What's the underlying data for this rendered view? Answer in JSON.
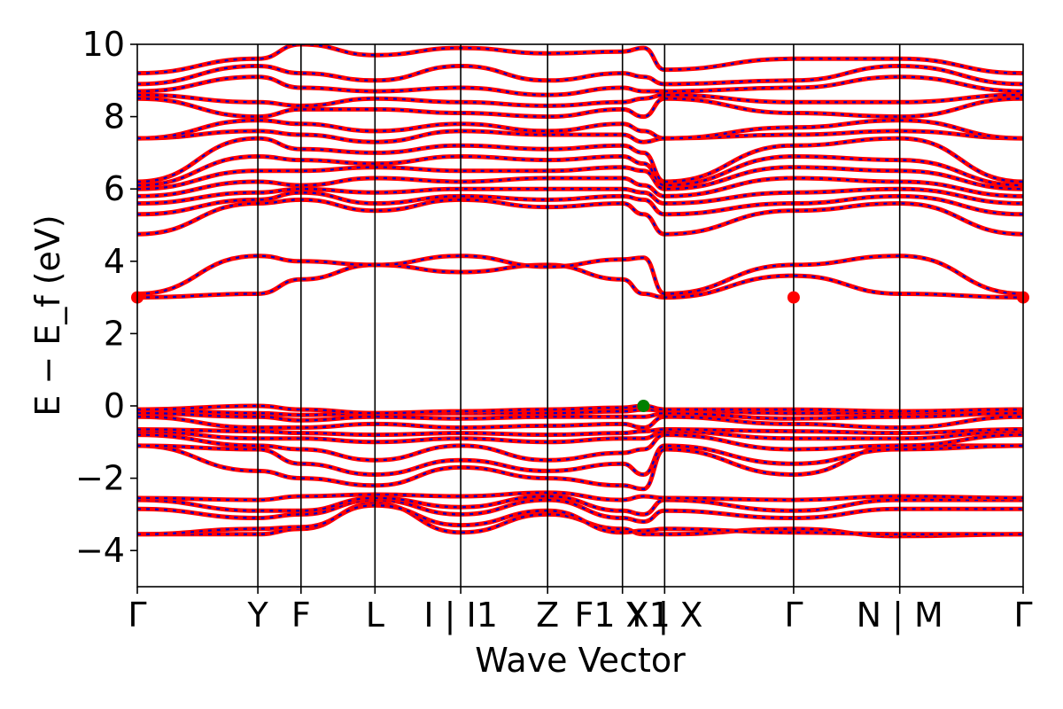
{
  "chart_data": {
    "type": "line",
    "title": "",
    "xlabel": "Wave Vector",
    "ylabel": "E − E_f (eV)",
    "ylim": [
      -5,
      10
    ],
    "yticks": [
      -4,
      -2,
      0,
      2,
      4,
      6,
      8,
      10
    ],
    "ytick_labels": [
      "−4",
      "−2",
      "0",
      "2",
      "4",
      "6",
      "8",
      "10"
    ],
    "grid": false,
    "legend": "none",
    "series_colors": {
      "spin_up": "#ff0000",
      "spin_down": "#0000cc"
    },
    "marker_colors": {
      "cbm": "#ff0000",
      "vbm": "#008000"
    },
    "kpath": [
      {
        "label": "Γ",
        "x": 0.0
      },
      {
        "label": "Y",
        "x": 0.1361
      },
      {
        "label": "F",
        "x": 0.1848
      },
      {
        "label": "L",
        "x": 0.2683
      },
      {
        "label": "I | I1",
        "x": 0.3651
      },
      {
        "label": "Z",
        "x": 0.4632
      },
      {
        "label": "F1 X1",
        "x": 0.5477
      },
      {
        "label": "Y | X",
        "x": 0.5953
      },
      {
        "label": "Γ",
        "x": 0.7409
      },
      {
        "label": "N | M",
        "x": 0.8607
      },
      {
        "label": "Γ",
        "x": 1.0
      }
    ],
    "cbm_points": [
      {
        "x": 0.0,
        "y": 3.0
      },
      {
        "x": 0.7409,
        "y": 3.0
      },
      {
        "x": 1.0,
        "y": 3.0
      }
    ],
    "vbm_point": {
      "x": 0.5714,
      "y": 0.0
    },
    "bands": [
      {
        "name": "v1",
        "y": [
          -3.55,
          -3.55,
          -3.4,
          -2.7,
          -3.5,
          -3.0,
          -3.4,
          -3.55,
          -3.55,
          -3.4,
          -3.6,
          -3.55
        ]
      },
      {
        "name": "v2",
        "y": [
          -3.55,
          -3.4,
          -3.35,
          -2.75,
          -3.3,
          -2.9,
          -3.5,
          -3.45,
          -3.4,
          -3.5,
          -3.55,
          -3.55
        ]
      },
      {
        "name": "v3",
        "y": [
          -2.85,
          -3.1,
          -3.0,
          -2.6,
          -3.0,
          -2.6,
          -3.1,
          -3.2,
          -2.9,
          -3.1,
          -2.85,
          -2.85
        ]
      },
      {
        "name": "v4",
        "y": [
          -2.6,
          -2.9,
          -2.9,
          -2.55,
          -2.8,
          -2.5,
          -2.9,
          -3.0,
          -2.6,
          -2.9,
          -2.6,
          -2.6
        ]
      },
      {
        "name": "v5",
        "y": [
          -2.55,
          -2.6,
          -2.5,
          -2.45,
          -2.5,
          -2.4,
          -2.6,
          -2.5,
          -2.55,
          -2.6,
          -2.5,
          -2.55
        ]
      },
      {
        "name": "v6",
        "y": [
          -1.1,
          -1.8,
          -2.0,
          -2.2,
          -1.7,
          -2.0,
          -2.2,
          -2.3,
          -1.2,
          -1.9,
          -1.1,
          -1.1
        ]
      },
      {
        "name": "v7",
        "y": [
          -1.1,
          -1.2,
          -1.6,
          -1.9,
          -1.5,
          -1.8,
          -1.6,
          -1.9,
          -1.1,
          -1.6,
          -1.2,
          -1.1
        ]
      },
      {
        "name": "v8",
        "y": [
          -0.8,
          -1.1,
          -1.2,
          -1.5,
          -1.1,
          -1.5,
          -1.3,
          -1.2,
          -0.8,
          -1.2,
          -1.1,
          -0.8
        ]
      },
      {
        "name": "v9",
        "y": [
          -0.7,
          -0.9,
          -0.9,
          -1.0,
          -0.9,
          -1.0,
          -0.9,
          -0.9,
          -0.7,
          -0.9,
          -0.9,
          -0.7
        ]
      },
      {
        "name": "v10",
        "y": [
          -0.65,
          -0.7,
          -0.75,
          -0.8,
          -0.75,
          -0.8,
          -0.75,
          -0.7,
          -0.65,
          -0.7,
          -0.75,
          -0.65
        ]
      },
      {
        "name": "v11",
        "y": [
          -0.3,
          -0.6,
          -0.6,
          -0.5,
          -0.6,
          -0.55,
          -0.5,
          -0.6,
          -0.3,
          -0.5,
          -0.6,
          -0.3
        ]
      },
      {
        "name": "v12",
        "y": [
          -0.2,
          -0.3,
          -0.4,
          -0.3,
          -0.35,
          -0.3,
          -0.3,
          -0.3,
          -0.2,
          -0.35,
          -0.3,
          -0.2
        ]
      },
      {
        "name": "v13",
        "y": [
          -0.1,
          -0.2,
          -0.25,
          -0.2,
          -0.2,
          -0.2,
          -0.15,
          -0.1,
          -0.12,
          -0.2,
          -0.2,
          -0.1
        ]
      },
      {
        "name": "v14",
        "y": [
          -0.1,
          0.0,
          -0.1,
          -0.2,
          -0.15,
          -0.1,
          -0.05,
          0.0,
          -0.1,
          -0.1,
          -0.15,
          -0.1
        ]
      },
      {
        "name": "c1",
        "y": [
          3.0,
          3.1,
          3.5,
          3.9,
          3.7,
          3.9,
          3.5,
          3.1,
          3.0,
          3.6,
          3.1,
          3.0
        ]
      },
      {
        "name": "c2",
        "y": [
          3.1,
          4.15,
          4.0,
          3.9,
          4.15,
          3.85,
          4.05,
          4.1,
          3.1,
          3.9,
          4.15,
          3.1
        ]
      },
      {
        "name": "c3",
        "y": [
          4.75,
          5.6,
          5.7,
          5.4,
          5.7,
          5.5,
          5.6,
          5.3,
          4.75,
          5.4,
          5.6,
          4.75
        ]
      },
      {
        "name": "c4",
        "y": [
          5.3,
          5.7,
          5.9,
          5.6,
          5.8,
          5.7,
          5.8,
          5.7,
          5.3,
          5.6,
          5.8,
          5.3
        ]
      },
      {
        "name": "c5",
        "y": [
          5.6,
          5.9,
          6.0,
          5.9,
          6.0,
          6.0,
          6.0,
          5.9,
          5.6,
          5.9,
          6.0,
          5.6
        ]
      },
      {
        "name": "c6",
        "y": [
          5.8,
          6.2,
          6.1,
          6.3,
          6.2,
          6.3,
          6.3,
          6.1,
          5.8,
          6.3,
          6.2,
          5.8
        ]
      },
      {
        "name": "c7",
        "y": [
          6.0,
          6.5,
          6.5,
          6.6,
          6.5,
          6.5,
          6.6,
          6.5,
          6.0,
          6.6,
          6.5,
          6.0
        ]
      },
      {
        "name": "c8",
        "y": [
          6.1,
          6.9,
          6.8,
          6.7,
          6.9,
          6.8,
          6.9,
          6.7,
          6.1,
          6.9,
          6.8,
          6.1
        ]
      },
      {
        "name": "c9",
        "y": [
          6.2,
          7.4,
          7.1,
          7.0,
          7.2,
          7.1,
          7.2,
          7.0,
          6.2,
          7.2,
          7.4,
          6.2
        ]
      },
      {
        "name": "c10",
        "y": [
          7.4,
          7.6,
          7.5,
          7.3,
          7.6,
          7.5,
          7.5,
          7.3,
          7.4,
          7.5,
          7.6,
          7.4
        ]
      },
      {
        "name": "c11",
        "y": [
          7.4,
          7.9,
          7.8,
          7.6,
          7.8,
          7.6,
          7.8,
          7.6,
          7.4,
          7.7,
          7.9,
          7.4
        ]
      },
      {
        "name": "c12",
        "y": [
          8.5,
          8.0,
          8.2,
          8.2,
          8.1,
          8.0,
          8.2,
          8.0,
          8.5,
          8.1,
          8.0,
          8.5
        ]
      },
      {
        "name": "c13",
        "y": [
          8.6,
          8.4,
          8.3,
          8.5,
          8.4,
          8.3,
          8.4,
          8.5,
          8.6,
          8.4,
          8.4,
          8.6
        ]
      },
      {
        "name": "c14",
        "y": [
          8.7,
          9.1,
          8.8,
          8.7,
          8.8,
          8.6,
          8.8,
          8.7,
          8.7,
          8.8,
          9.1,
          8.7
        ]
      },
      {
        "name": "c15",
        "y": [
          8.9,
          9.4,
          9.2,
          9.0,
          9.4,
          9.0,
          9.2,
          9.1,
          8.9,
          9.0,
          9.4,
          8.9
        ]
      },
      {
        "name": "c16",
        "y": [
          9.2,
          9.6,
          10.0,
          9.7,
          9.9,
          9.75,
          9.8,
          9.9,
          9.3,
          9.6,
          9.6,
          9.2
        ]
      }
    ]
  }
}
